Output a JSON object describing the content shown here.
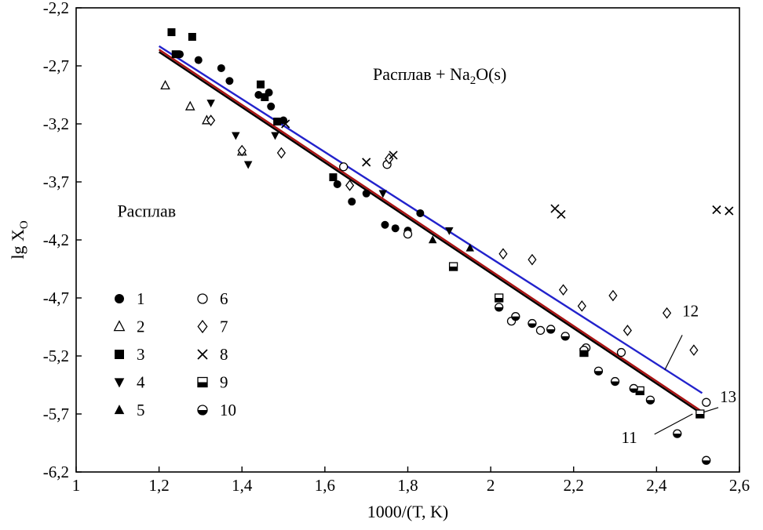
{
  "chart_data": {
    "type": "scatter",
    "title": "",
    "xlabel": "1000/(T, K)",
    "ylabel": {
      "pre": "lg X",
      "sub": "O"
    },
    "xlim": [
      1,
      2.6
    ],
    "ylim": [
      -6.2,
      -2.2
    ],
    "grid": false,
    "frame": true,
    "x_ticks": [
      {
        "v": 1,
        "label": "1"
      },
      {
        "v": 1.2,
        "label": "1,2"
      },
      {
        "v": 1.4,
        "label": "1,4"
      },
      {
        "v": 1.6,
        "label": "1,6"
      },
      {
        "v": 1.8,
        "label": "1,8"
      },
      {
        "v": 2,
        "label": "2"
      },
      {
        "v": 2.2,
        "label": "2,2"
      },
      {
        "v": 2.4,
        "label": "2,4"
      },
      {
        "v": 2.6,
        "label": "2,6"
      }
    ],
    "y_ticks": [
      {
        "v": -2.2,
        "label": "-2,2"
      },
      {
        "v": -2.7,
        "label": "-2,7"
      },
      {
        "v": -3.2,
        "label": "-3,2"
      },
      {
        "v": -3.7,
        "label": "-3,7"
      },
      {
        "v": -4.2,
        "label": "-4,2"
      },
      {
        "v": -4.7,
        "label": "-4,7"
      },
      {
        "v": -5.2,
        "label": "-5,2"
      },
      {
        "v": -5.7,
        "label": "-5,7"
      },
      {
        "v": -6.2,
        "label": "-6,2"
      }
    ],
    "series": [
      {
        "id": "1",
        "marker": "circle-filled",
        "color": "#000000",
        "points": [
          [
            1.25,
            -2.6
          ],
          [
            1.295,
            -2.65
          ],
          [
            1.35,
            -2.72
          ],
          [
            1.37,
            -2.83
          ],
          [
            1.44,
            -2.95
          ],
          [
            1.465,
            -2.93
          ],
          [
            1.47,
            -3.05
          ],
          [
            1.5,
            -3.17
          ],
          [
            1.63,
            -3.72
          ],
          [
            1.665,
            -3.87
          ],
          [
            1.7,
            -3.8
          ],
          [
            1.745,
            -4.07
          ],
          [
            1.77,
            -4.1
          ],
          [
            1.8,
            -4.12
          ],
          [
            1.83,
            -3.97
          ]
        ]
      },
      {
        "id": "2",
        "marker": "triangle-up-open",
        "color": "#000000",
        "points": [
          [
            1.215,
            -2.87
          ],
          [
            1.275,
            -3.05
          ],
          [
            1.315,
            -3.17
          ],
          [
            1.4,
            -3.44
          ]
        ]
      },
      {
        "id": "3",
        "marker": "square-filled",
        "color": "#000000",
        "points": [
          [
            1.23,
            -2.41
          ],
          [
            1.28,
            -2.45
          ],
          [
            1.24,
            -2.6
          ],
          [
            1.445,
            -2.86
          ],
          [
            1.455,
            -2.97
          ],
          [
            1.485,
            -3.18
          ],
          [
            1.62,
            -3.66
          ]
        ]
      },
      {
        "id": "4",
        "marker": "triangle-down-filled",
        "color": "#000000",
        "points": [
          [
            1.325,
            -3.02
          ],
          [
            1.385,
            -3.3
          ],
          [
            1.415,
            -3.55
          ],
          [
            1.48,
            -3.3
          ],
          [
            1.74,
            -3.8
          ],
          [
            1.9,
            -4.12
          ]
        ]
      },
      {
        "id": "5",
        "marker": "triangle-up-filled",
        "color": "#000000",
        "points": [
          [
            1.86,
            -4.2
          ],
          [
            1.95,
            -4.27
          ]
        ]
      },
      {
        "id": "6",
        "marker": "circle-open",
        "color": "#000000",
        "points": [
          [
            1.645,
            -3.57
          ],
          [
            1.75,
            -3.55
          ],
          [
            1.8,
            -4.15
          ],
          [
            2.05,
            -4.9
          ],
          [
            2.12,
            -4.98
          ],
          [
            2.23,
            -5.13
          ],
          [
            2.315,
            -5.17
          ],
          [
            2.52,
            -5.6
          ]
        ]
      },
      {
        "id": "7",
        "marker": "diamond-open",
        "color": "#000000",
        "points": [
          [
            1.325,
            -3.17
          ],
          [
            1.4,
            -3.43
          ],
          [
            1.495,
            -3.45
          ],
          [
            1.66,
            -3.73
          ],
          [
            1.755,
            -3.5
          ],
          [
            2.03,
            -4.32
          ],
          [
            2.1,
            -4.37
          ],
          [
            2.175,
            -4.63
          ],
          [
            2.22,
            -4.77
          ],
          [
            2.295,
            -4.68
          ],
          [
            2.33,
            -4.98
          ],
          [
            2.425,
            -4.83
          ],
          [
            2.49,
            -5.15
          ]
        ]
      },
      {
        "id": "8",
        "marker": "cross",
        "color": "#000000",
        "points": [
          [
            1.505,
            -3.2
          ],
          [
            1.7,
            -3.53
          ],
          [
            1.765,
            -3.47
          ],
          [
            2.155,
            -3.93
          ],
          [
            2.17,
            -3.98
          ],
          [
            2.545,
            -3.94
          ],
          [
            2.575,
            -3.95
          ]
        ]
      },
      {
        "id": "9",
        "marker": "square-halfbottom",
        "color": "#000000",
        "points": [
          [
            1.91,
            -4.43
          ],
          [
            2.02,
            -4.7
          ],
          [
            2.225,
            -5.17
          ],
          [
            2.36,
            -5.5
          ],
          [
            2.505,
            -5.7
          ]
        ]
      },
      {
        "id": "10",
        "marker": "circle-halfbottom",
        "color": "#000000",
        "points": [
          [
            2.02,
            -4.78
          ],
          [
            2.06,
            -4.86
          ],
          [
            2.1,
            -4.92
          ],
          [
            2.145,
            -4.97
          ],
          [
            2.18,
            -5.03
          ],
          [
            2.225,
            -5.15
          ],
          [
            2.26,
            -5.33
          ],
          [
            2.3,
            -5.42
          ],
          [
            2.345,
            -5.48
          ],
          [
            2.385,
            -5.58
          ],
          [
            2.45,
            -5.87
          ],
          [
            2.52,
            -6.1
          ]
        ]
      }
    ],
    "lines": [
      {
        "id": "13",
        "color": "#000000",
        "x": [
          1.2,
          2.51
        ],
        "y": [
          -2.58,
          -5.7
        ]
      },
      {
        "id": "11",
        "color": "#aa1111",
        "x": [
          1.2,
          2.51
        ],
        "y": [
          -2.56,
          -5.68
        ]
      },
      {
        "id": "12",
        "color": "#2222cc",
        "x": [
          1.2,
          2.51
        ],
        "y": [
          -2.53,
          -5.52
        ]
      }
    ],
    "annotations": {
      "region_melt_na2o": {
        "pre": "Расплав + Na",
        "sub": "2",
        "post": "O(s)",
        "x": 1.877,
        "y": -2.82
      },
      "region_melt": {
        "text": "Расплав",
        "x": 1.17,
        "y": -4.0
      },
      "line_labels": [
        {
          "text": "12",
          "x": 2.462,
          "y": -4.86,
          "lead": [
            [
              2.462,
              -5.02
            ],
            [
              2.42,
              -5.32
            ]
          ]
        },
        {
          "text": "13",
          "x": 2.553,
          "y": -5.6,
          "lead": [
            [
              2.549,
              -5.645
            ],
            [
              2.513,
              -5.685
            ]
          ]
        },
        {
          "text": "11",
          "x": 2.315,
          "y": -5.95,
          "lead": [
            [
              2.395,
              -5.875
            ],
            [
              2.487,
              -5.7
            ]
          ]
        }
      ]
    },
    "legend": {
      "columns": [
        {
          "entries": [
            {
              "marker": "circle-filled",
              "label": "1"
            },
            {
              "marker": "triangle-up-open",
              "label": "2"
            },
            {
              "marker": "square-filled",
              "label": "3"
            },
            {
              "marker": "triangle-down-filled",
              "label": "4"
            },
            {
              "marker": "triangle-up-filled",
              "label": "5"
            }
          ]
        },
        {
          "entries": [
            {
              "marker": "circle-open",
              "label": "6"
            },
            {
              "marker": "diamond-open",
              "label": "7"
            },
            {
              "marker": "cross",
              "label": "8"
            },
            {
              "marker": "square-halfbottom",
              "label": "9"
            },
            {
              "marker": "circle-halfbottom",
              "label": "10"
            }
          ]
        }
      ]
    }
  }
}
